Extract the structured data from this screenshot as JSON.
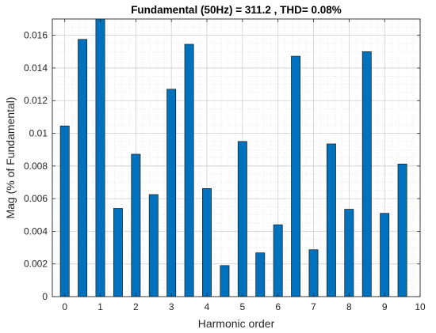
{
  "chart_data": {
    "type": "bar",
    "title": "Fundamental (50Hz) = 311.2 , THD= 0.08%",
    "xlabel": "Harmonic order",
    "ylabel": "Mag (% of Fundamental)",
    "x": [
      0,
      0.5,
      1,
      1.5,
      2,
      2.5,
      3,
      3.5,
      4,
      4.5,
      5,
      5.5,
      6,
      6.5,
      7,
      7.5,
      8,
      8.5,
      9,
      9.5
    ],
    "values": [
      0.01045,
      0.01575,
      0.0171,
      0.0054,
      0.00872,
      0.00625,
      0.0127,
      0.01545,
      0.00662,
      0.0019,
      0.0095,
      0.00268,
      0.0044,
      0.01472,
      0.00287,
      0.00935,
      0.00535,
      0.015,
      0.0051,
      0.00812
    ],
    "xlim": [
      -0.35,
      10
    ],
    "ylim": [
      0,
      0.017
    ],
    "xticks": [
      "0",
      "1",
      "2",
      "3",
      "4",
      "5",
      "6",
      "7",
      "8",
      "9",
      "10"
    ],
    "yticks": [
      "0",
      "0.002",
      "0.004",
      "0.006",
      "0.008",
      "0.01",
      "0.012",
      "0.014",
      "0.016"
    ],
    "grid": true,
    "bar_color": "#0072BD",
    "bar_edge_color": "#1a1a1a",
    "grid_color": "#dcdcdc"
  }
}
